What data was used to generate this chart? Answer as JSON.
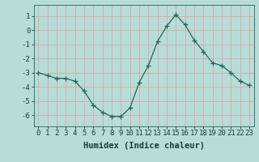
{
  "x": [
    0,
    1,
    2,
    3,
    4,
    5,
    6,
    7,
    8,
    9,
    10,
    11,
    12,
    13,
    14,
    15,
    16,
    17,
    18,
    19,
    20,
    21,
    22,
    23
  ],
  "y": [
    -3.0,
    -3.2,
    -3.4,
    -3.4,
    -3.6,
    -4.3,
    -5.3,
    -5.8,
    -6.1,
    -6.1,
    -5.5,
    -3.7,
    -2.5,
    -0.8,
    0.3,
    1.1,
    0.4,
    -0.7,
    -1.5,
    -2.3,
    -2.5,
    -3.0,
    -3.6,
    -3.9
  ],
  "line_color": "#1a6b5a",
  "marker": "+",
  "bg_color": "#b8ddd8",
  "grid_color": "#d8a8a8",
  "xlabel": "Humidex (Indice chaleur)",
  "ylabel": "",
  "xlim": [
    -0.5,
    23.5
  ],
  "ylim": [
    -6.8,
    1.8
  ],
  "yticks": [
    1,
    0,
    -1,
    -2,
    -3,
    -4,
    -5,
    -6
  ],
  "xticks": [
    0,
    1,
    2,
    3,
    4,
    5,
    6,
    7,
    8,
    9,
    10,
    11,
    12,
    13,
    14,
    15,
    16,
    17,
    18,
    19,
    20,
    21,
    22,
    23
  ],
  "tick_fontsize": 6.5,
  "label_fontsize": 7.5
}
